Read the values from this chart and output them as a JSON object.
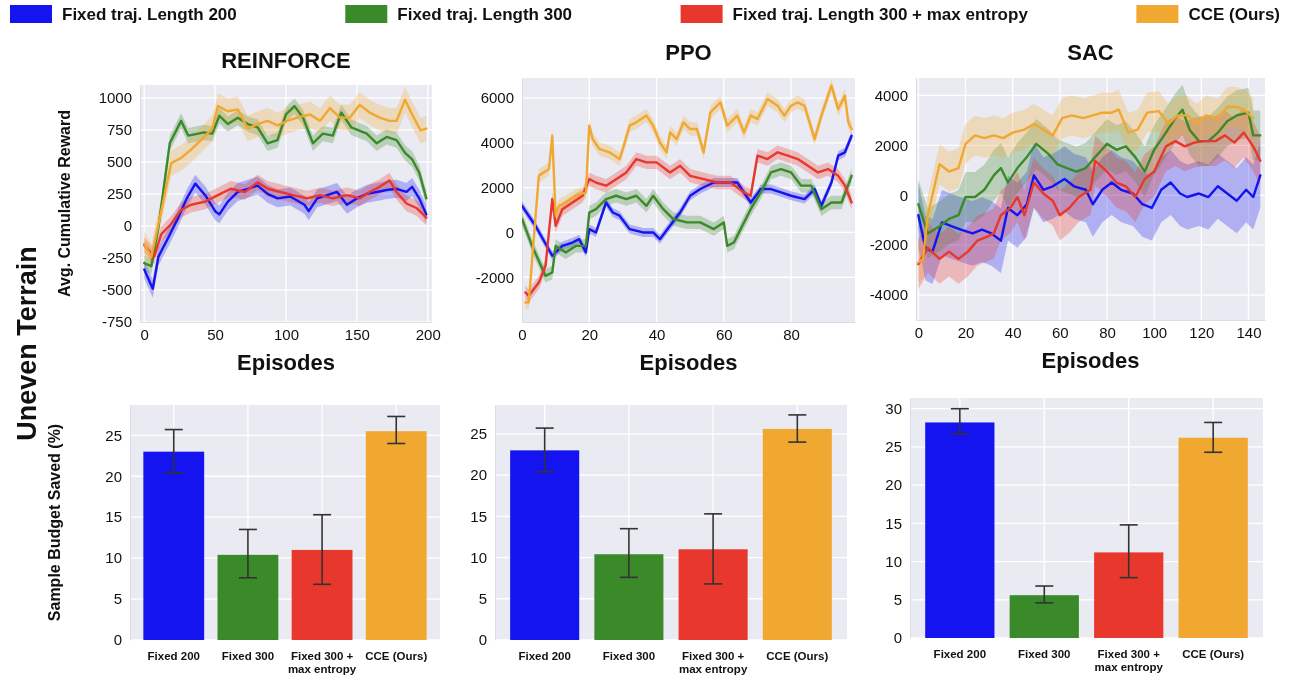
{
  "chart_data": [
    {
      "type": "line",
      "title": "REINFORCE",
      "xlabel": "Episodes",
      "ylabel": "Avg. Cumulative Reward",
      "annotations": [
        "Uneven Terrain"
      ],
      "legend": "top",
      "grid": true,
      "xlim": [
        -3,
        203
      ],
      "ylim": [
        -750,
        1100
      ],
      "xticks": [
        0,
        50,
        100,
        150,
        200
      ],
      "yticks": [
        -750,
        -500,
        -250,
        0,
        250,
        500,
        750,
        1000
      ],
      "series": [
        {
          "name": "Fixed traj. Length 200",
          "color": "#1414f0",
          "x": [
            0,
            6,
            10,
            17,
            24,
            30,
            36,
            43,
            50,
            53,
            59,
            66,
            73,
            80,
            87,
            94,
            103,
            113,
            116,
            122,
            129,
            136,
            143,
            150,
            157,
            164,
            171,
            178,
            185,
            189,
            194,
            199
          ],
          "values": [
            -340,
            -490,
            -240,
            -90,
            65,
            215,
            330,
            240,
            115,
            90,
            190,
            265,
            290,
            315,
            250,
            215,
            230,
            165,
            115,
            215,
            240,
            265,
            165,
            215,
            250,
            265,
            280,
            290,
            265,
            305,
            215,
            90
          ],
          "lower": [
            -410,
            -560,
            -310,
            -160,
            -5,
            145,
            260,
            170,
            45,
            20,
            120,
            195,
            220,
            245,
            180,
            145,
            160,
            95,
            45,
            145,
            170,
            195,
            95,
            145,
            180,
            195,
            210,
            220,
            195,
            235,
            145,
            20
          ],
          "upper": [
            -270,
            -420,
            -170,
            -20,
            135,
            285,
            400,
            310,
            185,
            160,
            260,
            335,
            360,
            385,
            320,
            285,
            300,
            235,
            185,
            285,
            310,
            335,
            235,
            285,
            320,
            335,
            350,
            360,
            335,
            375,
            285,
            160
          ]
        },
        {
          "name": "Fixed traj. Length 300",
          "color": "#3a8a2a",
          "x": [
            0,
            5,
            10,
            18,
            26,
            31,
            38,
            42,
            48,
            53,
            59,
            66,
            73,
            80,
            87,
            94,
            100,
            106,
            112,
            119,
            126,
            133,
            139,
            146,
            157,
            164,
            171,
            178,
            184,
            189,
            194,
            199
          ],
          "values": [
            -290,
            -315,
            -10,
            645,
            820,
            705,
            720,
            730,
            720,
            860,
            795,
            845,
            795,
            770,
            645,
            670,
            870,
            935,
            845,
            645,
            720,
            705,
            885,
            770,
            720,
            645,
            695,
            670,
            570,
            520,
            415,
            215
          ],
          "lower": [
            -350,
            -375,
            -70,
            585,
            760,
            645,
            660,
            670,
            660,
            800,
            735,
            785,
            735,
            710,
            585,
            610,
            810,
            875,
            785,
            585,
            660,
            645,
            825,
            710,
            660,
            585,
            635,
            610,
            510,
            460,
            355,
            155
          ],
          "upper": [
            -230,
            -255,
            50,
            705,
            880,
            765,
            780,
            790,
            780,
            920,
            855,
            905,
            855,
            830,
            705,
            730,
            930,
            995,
            905,
            705,
            780,
            765,
            945,
            830,
            780,
            705,
            755,
            730,
            630,
            580,
            475,
            275
          ]
        },
        {
          "name": "Fixed traj. Length 300 + max entropy",
          "color": "#e8372c",
          "x": [
            0,
            7,
            12,
            19,
            26,
            33,
            43,
            52,
            61,
            71,
            80,
            87,
            96,
            105,
            115,
            124,
            133,
            143,
            152,
            159,
            166,
            173,
            178,
            185,
            192,
            199
          ],
          "values": [
            -150,
            -240,
            -65,
            15,
            125,
            165,
            190,
            240,
            290,
            265,
            340,
            290,
            265,
            240,
            215,
            240,
            215,
            240,
            215,
            265,
            305,
            355,
            265,
            175,
            140,
            65
          ],
          "lower": [
            -210,
            -300,
            -125,
            -45,
            65,
            105,
            130,
            180,
            230,
            205,
            280,
            230,
            205,
            180,
            155,
            180,
            155,
            180,
            155,
            205,
            245,
            295,
            205,
            115,
            80,
            5
          ],
          "upper": [
            -90,
            -180,
            -5,
            75,
            185,
            225,
            250,
            300,
            350,
            325,
            400,
            350,
            325,
            300,
            275,
            300,
            275,
            300,
            275,
            325,
            365,
            415,
            325,
            235,
            200,
            125
          ]
        },
        {
          "name": "CCE (Ours)",
          "color": "#f0a830",
          "x": [
            0,
            5,
            12,
            19,
            26,
            33,
            40,
            48,
            52,
            59,
            66,
            73,
            80,
            87,
            94,
            101,
            108,
            117,
            124,
            131,
            138,
            145,
            152,
            159,
            166,
            173,
            178,
            184,
            189,
            195,
            199
          ],
          "values": [
            -140,
            -240,
            115,
            490,
            530,
            595,
            670,
            760,
            935,
            895,
            910,
            760,
            795,
            820,
            785,
            820,
            845,
            870,
            820,
            920,
            845,
            845,
            945,
            885,
            845,
            820,
            820,
            985,
            870,
            745,
            760
          ],
          "lower": [
            -240,
            -340,
            15,
            390,
            430,
            495,
            570,
            660,
            835,
            795,
            810,
            660,
            695,
            720,
            685,
            720,
            745,
            770,
            720,
            820,
            745,
            745,
            845,
            785,
            745,
            720,
            720,
            885,
            770,
            645,
            660
          ],
          "upper": [
            -40,
            -140,
            215,
            590,
            630,
            695,
            770,
            860,
            1035,
            995,
            1010,
            860,
            895,
            920,
            885,
            920,
            945,
            970,
            920,
            1020,
            945,
            945,
            1045,
            985,
            945,
            920,
            920,
            1085,
            970,
            845,
            860
          ]
        }
      ]
    },
    {
      "type": "line",
      "title": "PPO",
      "xlabel": "Episodes",
      "grid": true,
      "xlim": [
        0,
        99
      ],
      "ylim": [
        -4000,
        6900
      ],
      "xticks": [
        0,
        20,
        40,
        60,
        80
      ],
      "yticks": [
        -2000,
        0,
        2000,
        4000,
        6000
      ],
      "series": [
        {
          "color": "#1414f0",
          "x": [
            0,
            4,
            9,
            12,
            15,
            17,
            19,
            20,
            22,
            25,
            27,
            29,
            32,
            36,
            39,
            41,
            44,
            47,
            50,
            53,
            57,
            60,
            64,
            68,
            71,
            74,
            77,
            80,
            84,
            87,
            89,
            92,
            94,
            96,
            98
          ],
          "values": [
            1190,
            300,
            -1040,
            -600,
            -450,
            -300,
            -890,
            150,
            0,
            1340,
            890,
            750,
            150,
            0,
            0,
            -300,
            300,
            890,
            1640,
            1940,
            2230,
            2230,
            2230,
            1340,
            1940,
            1940,
            1790,
            1640,
            1490,
            1940,
            1190,
            2230,
            3430,
            3580,
            4320
          ],
          "lower": [
            990,
            100,
            -1240,
            -800,
            -650,
            -500,
            -1090,
            -50,
            -200,
            1140,
            690,
            550,
            -50,
            -200,
            -200,
            -500,
            100,
            690,
            1440,
            1740,
            2030,
            2030,
            2030,
            1140,
            1740,
            1740,
            1590,
            1440,
            1290,
            1740,
            990,
            2030,
            3230,
            3380,
            4120
          ],
          "upper": [
            1390,
            500,
            -840,
            -400,
            -250,
            -100,
            -690,
            350,
            200,
            1540,
            1090,
            950,
            350,
            200,
            200,
            -100,
            500,
            1090,
            1840,
            2140,
            2430,
            2430,
            2430,
            1540,
            2140,
            2140,
            1990,
            1840,
            1690,
            2140,
            1390,
            2430,
            3630,
            3780,
            4520
          ]
        },
        {
          "color": "#3a8a2a",
          "x": [
            0,
            3,
            7,
            9,
            10,
            13,
            16,
            19,
            20,
            22,
            25,
            28,
            31,
            34,
            37,
            39,
            42,
            45,
            49,
            53,
            57,
            60,
            61,
            63,
            65,
            68,
            71,
            74,
            77,
            80,
            83,
            86,
            89,
            92,
            95,
            98
          ],
          "values": [
            600,
            -600,
            -1940,
            -1790,
            -600,
            -890,
            -600,
            -600,
            890,
            1040,
            1490,
            1640,
            1490,
            1640,
            1190,
            1640,
            1040,
            600,
            450,
            450,
            150,
            450,
            -600,
            -450,
            150,
            1040,
            1790,
            2680,
            2830,
            2680,
            2090,
            2090,
            1040,
            1340,
            1340,
            2530
          ],
          "lower": [
            300,
            -900,
            -2240,
            -2090,
            -900,
            -1190,
            -900,
            -900,
            590,
            740,
            1190,
            1340,
            1190,
            1340,
            890,
            1340,
            740,
            300,
            150,
            150,
            -150,
            150,
            -900,
            -750,
            -150,
            740,
            1490,
            2380,
            2530,
            2380,
            1790,
            1790,
            740,
            1040,
            1040,
            2230
          ],
          "upper": [
            900,
            -300,
            -1640,
            -1490,
            -300,
            -590,
            -300,
            -300,
            1190,
            1340,
            1790,
            1940,
            1790,
            1940,
            1490,
            1940,
            1340,
            900,
            750,
            750,
            450,
            750,
            -300,
            -150,
            450,
            1340,
            2090,
            2980,
            3130,
            2980,
            2390,
            2390,
            1340,
            1640,
            1640,
            2830
          ]
        },
        {
          "color": "#e8372c",
          "x": [
            1,
            2,
            5,
            7,
            9,
            10,
            12,
            15,
            18,
            20,
            22,
            25,
            28,
            31,
            34,
            37,
            40,
            44,
            47,
            50,
            54,
            58,
            62,
            66,
            68,
            70,
            73,
            76,
            79,
            82,
            85,
            88,
            91,
            94,
            96,
            98
          ],
          "values": [
            -2680,
            -2830,
            -2240,
            -1490,
            1490,
            300,
            1040,
            1340,
            1640,
            2380,
            2230,
            2090,
            2380,
            2680,
            3280,
            3130,
            3130,
            2680,
            2980,
            2530,
            2380,
            2230,
            2230,
            1790,
            1640,
            3430,
            3280,
            3580,
            3430,
            3280,
            2980,
            2680,
            2830,
            2530,
            2090,
            1340
          ],
          "lower": [
            -2980,
            -3130,
            -2540,
            -1790,
            1190,
            0,
            740,
            1040,
            1340,
            2080,
            1930,
            1790,
            2080,
            2380,
            2980,
            2830,
            2830,
            2380,
            2680,
            2230,
            2080,
            1930,
            1930,
            1490,
            1340,
            3130,
            2980,
            3280,
            3130,
            2980,
            2680,
            2380,
            2530,
            2230,
            1790,
            1040
          ],
          "upper": [
            -2380,
            -2530,
            -1940,
            -1190,
            1790,
            600,
            1340,
            1640,
            1940,
            2680,
            2530,
            2390,
            2680,
            2980,
            3580,
            3430,
            3430,
            2980,
            3280,
            2830,
            2680,
            2530,
            2530,
            2090,
            1940,
            3730,
            3580,
            3880,
            3730,
            3580,
            3280,
            2980,
            3130,
            2830,
            2390,
            1640
          ]
        },
        {
          "color": "#f0a830",
          "x": [
            1,
            2,
            5,
            8,
            9,
            10,
            11,
            13,
            16,
            19,
            20,
            21,
            23,
            26,
            29,
            30,
            32,
            34,
            37,
            39,
            41,
            43,
            44,
            46,
            48,
            50,
            52,
            54,
            56,
            59,
            61,
            64,
            66,
            68,
            70,
            73,
            76,
            78,
            80,
            82,
            84,
            87,
            89,
            92,
            94,
            96,
            97,
            98
          ],
          "values": [
            -3130,
            -3130,
            2530,
            2830,
            4320,
            750,
            1190,
            1340,
            1640,
            1790,
            4770,
            4170,
            3730,
            3580,
            3280,
            3730,
            4770,
            4920,
            5220,
            4770,
            4020,
            3580,
            4470,
            4170,
            4920,
            4620,
            4620,
            3580,
            5360,
            5810,
            4770,
            5220,
            4470,
            5220,
            5070,
            5960,
            5660,
            5220,
            5660,
            5810,
            5660,
            4170,
            5220,
            6560,
            5510,
            6110,
            4920,
            4620
          ],
          "lower": [
            -3430,
            -3430,
            2230,
            2530,
            4020,
            450,
            890,
            1040,
            1340,
            1490,
            4470,
            3870,
            3430,
            3280,
            2980,
            3430,
            4470,
            4620,
            4920,
            4470,
            3720,
            3280,
            4170,
            3870,
            4620,
            4320,
            4320,
            3280,
            5060,
            5510,
            4470,
            4920,
            4170,
            4920,
            4770,
            5660,
            5360,
            4920,
            5360,
            5510,
            5360,
            3870,
            4920,
            6260,
            5210,
            5810,
            4620,
            4320
          ],
          "upper": [
            -2830,
            -2830,
            2830,
            3130,
            4620,
            1050,
            1490,
            1640,
            1940,
            2090,
            5070,
            4470,
            4030,
            3880,
            3580,
            4030,
            5070,
            5220,
            5520,
            5070,
            4320,
            3880,
            4770,
            4470,
            5220,
            4920,
            4920,
            3880,
            5660,
            6110,
            5070,
            5520,
            4770,
            5520,
            5370,
            6260,
            5960,
            5520,
            5960,
            6110,
            5960,
            4470,
            5520,
            6860,
            5810,
            6410,
            5220,
            4920
          ]
        }
      ]
    },
    {
      "type": "line",
      "title": "SAC",
      "xlabel": "Episodes",
      "grid": true,
      "xlim": [
        -1,
        147
      ],
      "ylim": [
        -5000,
        4700
      ],
      "xticks": [
        0,
        20,
        40,
        60,
        80,
        100,
        120,
        140
      ],
      "yticks": [
        -4000,
        -2000,
        0,
        2000,
        4000
      ],
      "series": [
        {
          "color": "#1414f0",
          "x": [
            0,
            3,
            6,
            10,
            14,
            18,
            23,
            27,
            31,
            35,
            38,
            42,
            46,
            49,
            53,
            57,
            62,
            66,
            71,
            74,
            78,
            82,
            86,
            91,
            95,
            99,
            103,
            107,
            111,
            114,
            119,
            123,
            127,
            131,
            135,
            139,
            142,
            145
          ],
          "values": [
            -800,
            -2110,
            -2260,
            -1090,
            -1240,
            -1380,
            -1530,
            -1380,
            -1530,
            -1820,
            -510,
            -800,
            -360,
            800,
            220,
            360,
            650,
            360,
            220,
            -360,
            220,
            510,
            220,
            70,
            -360,
            -510,
            220,
            510,
            70,
            -70,
            70,
            -70,
            360,
            70,
            -220,
            220,
            -70,
            800
          ],
          "lower": [
            -2100,
            -3410,
            -3560,
            -2390,
            -2540,
            -2680,
            -2830,
            -2680,
            -2830,
            -3120,
            -1810,
            -2100,
            -1660,
            -500,
            -1080,
            -940,
            -650,
            -940,
            -1080,
            -1660,
            -1080,
            -790,
            -1080,
            -1230,
            -1660,
            -1810,
            -1080,
            -790,
            -1230,
            -1370,
            -1230,
            -1370,
            -940,
            -1230,
            -1520,
            -1080,
            -1370,
            -500
          ],
          "upper": [
            500,
            -810,
            -960,
            210,
            60,
            -80,
            -230,
            -80,
            -230,
            -520,
            790,
            500,
            940,
            2100,
            1520,
            1660,
            1950,
            1660,
            1520,
            940,
            1520,
            1810,
            1520,
            1370,
            940,
            790,
            1520,
            1810,
            1370,
            1230,
            1370,
            1230,
            1660,
            1370,
            1080,
            1520,
            1230,
            2100
          ]
        },
        {
          "color": "#3a8a2a",
          "x": [
            0,
            4,
            9,
            13,
            17,
            20,
            24,
            28,
            32,
            35,
            38,
            42,
            46,
            50,
            55,
            59,
            63,
            67,
            71,
            75,
            80,
            84,
            88,
            92,
            96,
            100,
            105,
            109,
            112,
            115,
            119,
            123,
            127,
            131,
            135,
            140,
            142,
            145
          ],
          "values": [
            -360,
            -1530,
            -1240,
            -950,
            -800,
            -70,
            -70,
            220,
            800,
            1090,
            510,
            1090,
            1530,
            2060,
            1670,
            1240,
            1090,
            950,
            1090,
            1530,
            2060,
            1820,
            1960,
            1530,
            950,
            1820,
            2510,
            3090,
            3430,
            2630,
            2170,
            2170,
            2510,
            2970,
            3200,
            3310,
            2400,
            2400
          ],
          "lower": [
            -1360,
            -2530,
            -2240,
            -1950,
            -1800,
            -1070,
            -1070,
            -780,
            -200,
            90,
            -490,
            90,
            530,
            1060,
            670,
            240,
            90,
            -50,
            90,
            530,
            1060,
            820,
            960,
            530,
            -50,
            820,
            1510,
            2090,
            2430,
            1630,
            1170,
            1170,
            1510,
            1970,
            2200,
            2310,
            1400,
            1400
          ],
          "upper": [
            640,
            -530,
            -240,
            50,
            200,
            930,
            930,
            1220,
            1800,
            2090,
            1510,
            2090,
            2530,
            3060,
            2670,
            2240,
            2090,
            1950,
            2090,
            2530,
            3060,
            2820,
            2960,
            2530,
            1950,
            2820,
            3510,
            4090,
            4430,
            3630,
            3170,
            3170,
            3510,
            3970,
            4200,
            4310,
            3400,
            3400
          ]
        },
        {
          "color": "#e8372c",
          "x": [
            0,
            4,
            9,
            13,
            17,
            21,
            25,
            29,
            32,
            35,
            39,
            42,
            45,
            49,
            53,
            57,
            60,
            64,
            68,
            73,
            75,
            80,
            84,
            88,
            92,
            96,
            100,
            105,
            109,
            113,
            117,
            121,
            126,
            130,
            134,
            138,
            142,
            145
          ],
          "values": [
            -2760,
            -2110,
            -2550,
            -2260,
            -2550,
            -2260,
            -1820,
            -1670,
            -1530,
            -800,
            -510,
            -70,
            -800,
            510,
            70,
            -220,
            -800,
            -510,
            -70,
            220,
            1380,
            950,
            510,
            360,
            -70,
            650,
            950,
            1960,
            2170,
            1960,
            2110,
            2170,
            2170,
            2400,
            2110,
            2510,
            1960,
            1380
          ],
          "lower": [
            -3760,
            -3110,
            -3550,
            -3260,
            -3550,
            -3260,
            -2820,
            -2670,
            -2530,
            -1800,
            -1510,
            -1070,
            -1800,
            -490,
            -930,
            -1220,
            -1800,
            -1510,
            -1070,
            -780,
            380,
            -50,
            -490,
            -640,
            -1070,
            -350,
            -50,
            960,
            1170,
            960,
            1110,
            1170,
            1170,
            1400,
            1110,
            1510,
            960,
            380
          ],
          "upper": [
            -1760,
            -1110,
            -1550,
            -1260,
            -1550,
            -1260,
            -820,
            -670,
            -530,
            200,
            490,
            930,
            200,
            1510,
            1070,
            780,
            200,
            490,
            930,
            1220,
            2380,
            1950,
            1510,
            1360,
            930,
            1650,
            1950,
            2960,
            3170,
            2960,
            3110,
            3170,
            3170,
            3400,
            3110,
            3510,
            2960,
            2380
          ]
        },
        {
          "color": "#f0a830",
          "x": [
            0,
            2,
            4,
            9,
            13,
            17,
            20,
            24,
            28,
            32,
            36,
            40,
            45,
            49,
            53,
            57,
            61,
            65,
            70,
            74,
            78,
            82,
            85,
            89,
            93,
            97,
            102,
            106,
            110,
            114,
            118,
            122,
            127,
            131,
            135,
            138,
            142
          ],
          "values": [
            -2690,
            -2550,
            -800,
            1240,
            950,
            1090,
            2060,
            2400,
            2290,
            2400,
            2290,
            2510,
            2630,
            2860,
            2630,
            2400,
            3090,
            3200,
            3090,
            3200,
            3310,
            3310,
            3430,
            2510,
            2630,
            3310,
            3370,
            2860,
            3200,
            3200,
            2860,
            3200,
            3090,
            3540,
            3540,
            3430,
            3090
          ],
          "lower": [
            -3490,
            -3350,
            -1600,
            440,
            150,
            290,
            1260,
            1600,
            1490,
            1600,
            1490,
            1710,
            1830,
            2060,
            1830,
            1600,
            2290,
            2400,
            2290,
            2400,
            2510,
            2510,
            2630,
            1710,
            1830,
            2510,
            2570,
            2060,
            2400,
            2400,
            2060,
            2400,
            2290,
            2740,
            2740,
            2630,
            2290
          ],
          "upper": [
            -1890,
            -1750,
            0,
            2040,
            1750,
            1890,
            2860,
            3200,
            3090,
            3200,
            3090,
            3310,
            3430,
            3660,
            3430,
            3200,
            3890,
            4000,
            3890,
            4000,
            4110,
            4110,
            4230,
            3310,
            3430,
            4110,
            4170,
            3660,
            4000,
            4000,
            3660,
            4000,
            3890,
            4340,
            4340,
            4230,
            3890
          ]
        }
      ]
    },
    {
      "type": "bar",
      "ylabel": "Sample Budget Saved (%)",
      "grid": true,
      "categories": [
        "Fixed 200",
        "Fixed 300",
        "Fixed 300 + max entropy",
        "CCE (Ours)"
      ],
      "values": [
        23.0,
        10.4,
        11.0,
        25.5
      ],
      "colors": [
        "#1414f0",
        "#3a8a2a",
        "#e8372c",
        "#f0a830"
      ],
      "errors": [
        [
          20.4,
          25.7
        ],
        [
          7.6,
          13.5
        ],
        [
          6.8,
          15.3
        ],
        [
          24.0,
          27.3
        ]
      ],
      "ylim": [
        0,
        28.7
      ],
      "yticks": [
        0,
        5,
        10,
        15,
        20,
        25
      ]
    },
    {
      "type": "bar",
      "grid": true,
      "categories": [
        "Fixed 200",
        "Fixed 300",
        "Fixed 300 + max entropy",
        "CCE (Ours)"
      ],
      "values": [
        23.0,
        10.4,
        11.0,
        25.6
      ],
      "colors": [
        "#1414f0",
        "#3a8a2a",
        "#e8372c",
        "#f0a830"
      ],
      "errors": [
        [
          20.4,
          25.7
        ],
        [
          7.6,
          13.5
        ],
        [
          6.8,
          15.3
        ],
        [
          24.0,
          27.3
        ]
      ],
      "ylim": [
        0,
        28.5
      ],
      "yticks": [
        0,
        5,
        10,
        15,
        20,
        25
      ]
    },
    {
      "type": "bar",
      "grid": true,
      "categories": [
        "Fixed 200",
        "Fixed 300",
        "Fixed 300 + max entropy",
        "CCE (Ours)"
      ],
      "values": [
        28.2,
        5.6,
        11.2,
        26.2
      ],
      "colors": [
        "#1414f0",
        "#3a8a2a",
        "#e8372c",
        "#f0a830"
      ],
      "errors": [
        [
          26.7,
          30.0
        ],
        [
          4.6,
          6.8
        ],
        [
          7.9,
          14.8
        ],
        [
          24.3,
          28.2
        ]
      ],
      "ylim": [
        0,
        31.4
      ],
      "yticks": [
        0,
        5,
        10,
        15,
        20,
        25,
        30
      ]
    }
  ]
}
